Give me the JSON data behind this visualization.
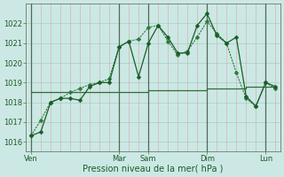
{
  "title": "",
  "xlabel": "Pression niveau de la mer( hPa )",
  "background_color": "#cce8e4",
  "grid_h_color": "#aad4ce",
  "grid_v_color": "#d4a8a8",
  "day_line_color": "#556655",
  "line_color1": "#1a5c28",
  "line_color2": "#2d7a3a",
  "line_color_flat": "#2d6e38",
  "ylim": [
    1015.5,
    1023.0
  ],
  "yticks": [
    1016,
    1017,
    1018,
    1019,
    1020,
    1021,
    1022
  ],
  "day_labels": [
    "Ven",
    "Mar",
    "Sam",
    "Dim",
    "Lun"
  ],
  "day_x": [
    0,
    9,
    12,
    18,
    24
  ],
  "n_points": 26,
  "series1": [
    1016.3,
    1016.5,
    1018.0,
    1018.2,
    1018.2,
    1018.1,
    1018.8,
    1019.0,
    1019.0,
    1020.8,
    1021.1,
    1019.3,
    1021.0,
    1021.9,
    1021.3,
    1020.5,
    1020.5,
    1021.9,
    1022.5,
    1021.4,
    1021.0,
    1021.3,
    1018.3,
    1017.8,
    1019.0,
    1018.8
  ],
  "series2": [
    1016.3,
    1017.1,
    1018.0,
    1018.2,
    1018.5,
    1018.7,
    1018.9,
    1019.0,
    1019.2,
    1020.8,
    1021.1,
    1021.2,
    1021.8,
    1021.9,
    1021.1,
    1020.4,
    1020.6,
    1021.3,
    1022.1,
    1021.5,
    1021.0,
    1019.5,
    1018.2,
    1017.8,
    1019.0,
    1018.7
  ],
  "series3_flat": [
    1018.5,
    1018.5,
    1018.5,
    1018.5,
    1018.5,
    1018.5,
    1018.5,
    1018.5,
    1018.5,
    1018.5,
    1018.5,
    1018.5,
    1018.6,
    1018.6,
    1018.6,
    1018.6,
    1018.6,
    1018.6,
    1018.7,
    1018.7,
    1018.7,
    1018.7,
    1018.8,
    1018.8,
    1018.8,
    1018.8
  ]
}
